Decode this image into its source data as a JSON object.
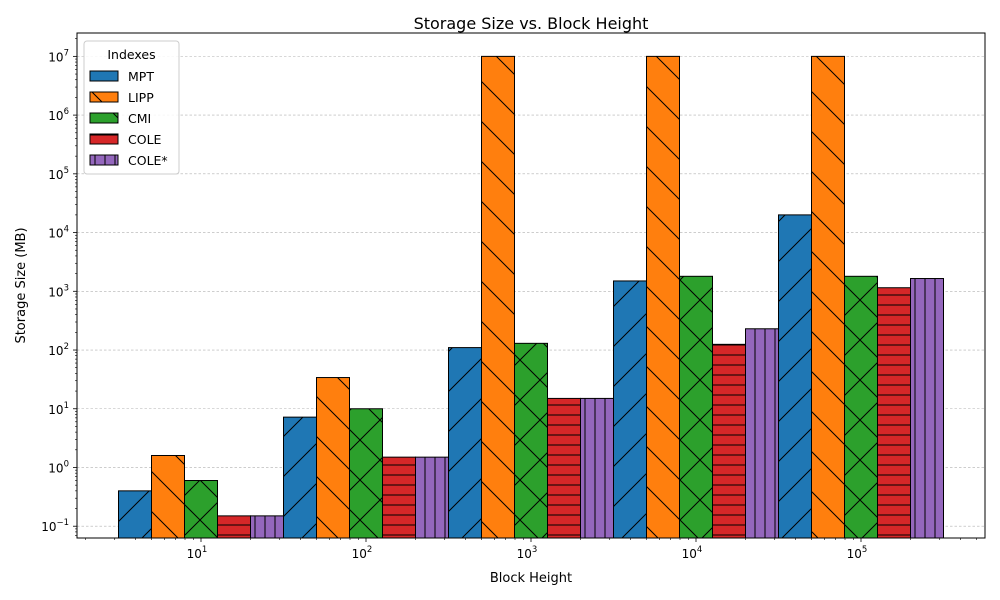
{
  "chart_data": {
    "type": "bar",
    "title": "Storage Size vs. Block Height",
    "xlabel": "Block Height",
    "ylabel": "Storage Size (MB)",
    "x_scale": "log",
    "y_scale": "log",
    "categories": [
      10,
      100,
      1000,
      10000,
      100000
    ],
    "x_tick_labels": [
      {
        "base": "10",
        "exp": "1"
      },
      {
        "base": "10",
        "exp": "2"
      },
      {
        "base": "10",
        "exp": "3"
      },
      {
        "base": "10",
        "exp": "4"
      },
      {
        "base": "10",
        "exp": "5"
      }
    ],
    "y_ticks": [
      {
        "value": 0.1,
        "base": "10",
        "exp": "−1"
      },
      {
        "value": 1,
        "base": "10",
        "exp": "0"
      },
      {
        "value": 10,
        "base": "10",
        "exp": "1"
      },
      {
        "value": 100,
        "base": "10",
        "exp": "2"
      },
      {
        "value": 1000,
        "base": "10",
        "exp": "3"
      },
      {
        "value": 10000,
        "base": "10",
        "exp": "4"
      },
      {
        "value": 100000,
        "base": "10",
        "exp": "5"
      },
      {
        "value": 1000000,
        "base": "10",
        "exp": "6"
      },
      {
        "value": 10000000,
        "base": "10",
        "exp": "7"
      }
    ],
    "ylim": [
      0.063,
      25000000
    ],
    "grid": "y-major-dashed",
    "legend": {
      "title": "Indexes",
      "placement": "top-left"
    },
    "series": [
      {
        "name": "MPT",
        "color": "#1f77b4",
        "hatch": "/",
        "values": [
          0.4,
          7.2,
          110,
          1500,
          20000
        ]
      },
      {
        "name": "LIPP",
        "color": "#ff7f0e",
        "hatch": "\\",
        "values": [
          1.6,
          34,
          10000000,
          10000000,
          10000000
        ]
      },
      {
        "name": "CMI",
        "color": "#2ca02c",
        "hatch": "x",
        "values": [
          0.6,
          10,
          130,
          1800,
          1800
        ]
      },
      {
        "name": "COLE",
        "color": "#d62728",
        "hatch": "-",
        "values": [
          0.15,
          1.5,
          15,
          125,
          1150
        ]
      },
      {
        "name": "COLE*",
        "color": "#9467bd",
        "hatch": "|",
        "values": [
          0.15,
          1.5,
          15,
          230,
          1650
        ]
      }
    ]
  }
}
